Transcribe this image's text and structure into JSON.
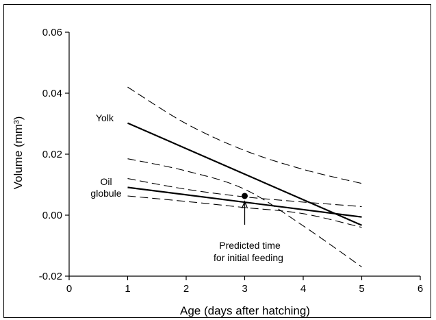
{
  "chart_data": {
    "type": "line",
    "xlabel": "Age (days after hatching)",
    "ylabel": "Volume (mm³)",
    "xlim": [
      0,
      6
    ],
    "ylim": [
      -0.02,
      0.06
    ],
    "x_ticks": [
      0,
      1,
      2,
      3,
      4,
      5,
      6
    ],
    "x_tick_labels": [
      "0",
      "1",
      "2",
      "3",
      "4",
      "5",
      "6"
    ],
    "y_ticks": [
      -0.02,
      0.0,
      0.02,
      0.04,
      0.06
    ],
    "y_tick_labels": [
      "-0.02",
      "0.00",
      "0.02",
      "0.04",
      "0.06"
    ],
    "grid": false,
    "series": [
      {
        "name": "Yolk",
        "style": "solid",
        "x": [
          1,
          5
        ],
        "y": [
          0.0302,
          -0.0033
        ]
      },
      {
        "name": "Yolk upper bound",
        "style": "dashed",
        "x": [
          1,
          2,
          3,
          4,
          5
        ],
        "y": [
          0.042,
          0.03,
          0.0212,
          0.015,
          0.0104
        ]
      },
      {
        "name": "Yolk lower bound",
        "style": "dashed",
        "x": [
          1,
          2,
          3,
          4,
          5
        ],
        "y": [
          0.0185,
          0.0145,
          0.0085,
          -0.0035,
          -0.017
        ]
      },
      {
        "name": "Oil globule",
        "style": "solid",
        "x": [
          1,
          5
        ],
        "y": [
          0.0091,
          -0.0006
        ]
      },
      {
        "name": "Oil globule upper bound",
        "style": "dashed",
        "x": [
          1,
          2,
          3,
          4,
          5
        ],
        "y": [
          0.012,
          0.0085,
          0.006,
          0.0043,
          0.0028
        ]
      },
      {
        "name": "Oil globule lower bound",
        "style": "dashed",
        "x": [
          1,
          2,
          3,
          4,
          5
        ],
        "y": [
          0.0063,
          0.0045,
          0.0025,
          0.0005,
          -0.004
        ]
      }
    ],
    "point": {
      "x": 3.0,
      "y": 0.0063
    },
    "labels": {
      "yolk": "Yolk",
      "oil_line1": "Oil",
      "oil_line2": "globule",
      "feeding_line1": "Predicted time",
      "feeding_line2": "for initial feeding"
    }
  }
}
